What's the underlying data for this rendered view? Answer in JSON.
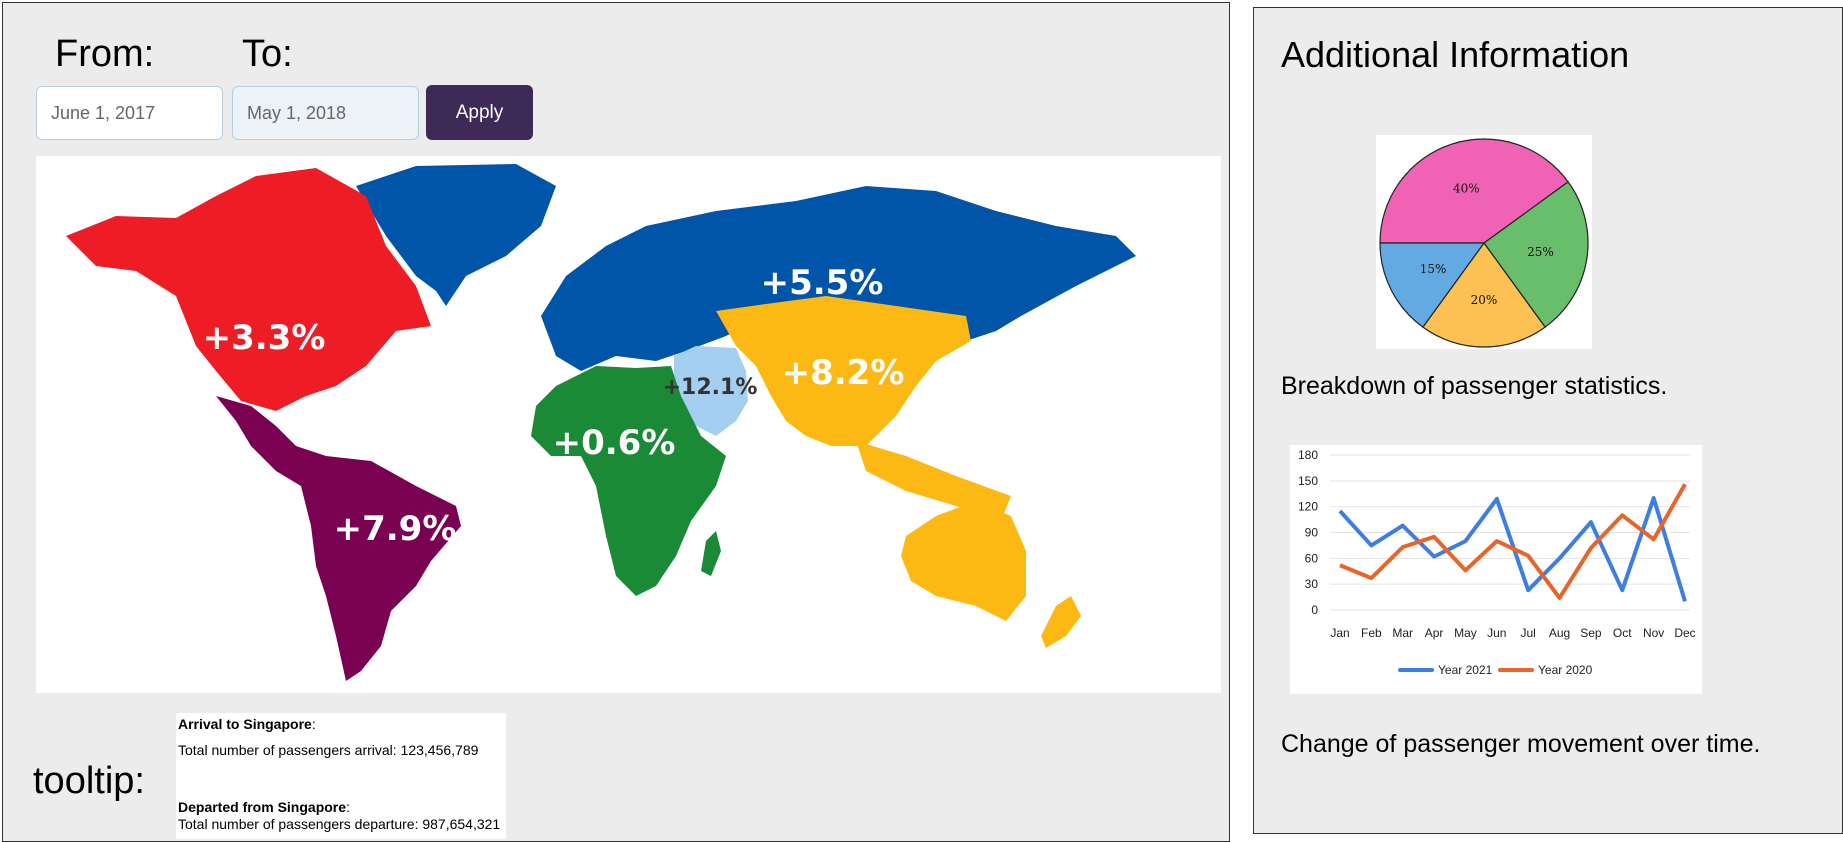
{
  "filters": {
    "from_label": "From:",
    "to_label": "To:",
    "from_value": "June 1, 2017",
    "to_value": "May 1, 2018",
    "apply_label": "Apply"
  },
  "map": {
    "regions": [
      {
        "name": "North America",
        "change": "+3.3%",
        "color": "#ee1c25"
      },
      {
        "name": "Europe",
        "change": "+5.5%",
        "color": "#0055a8"
      },
      {
        "name": "Middle East",
        "change": "+12.1%",
        "color": "#a5cff0"
      },
      {
        "name": "Asia Pacific",
        "change": "+8.2%",
        "color": "#fdb913"
      },
      {
        "name": "Africa",
        "change": "+0.6%",
        "color": "#1a8a37"
      },
      {
        "name": "Latin America",
        "change": "+7.9%",
        "color": "#7a0051"
      }
    ]
  },
  "tooltip": {
    "label": "tooltip:",
    "arrival_title": "Arrival to Singapore",
    "arrival_text": "Total number of passengers arrival: 123,456,789",
    "departure_title": "Departed from Singapore",
    "departure_text": "Total number of passengers departure: 987,654,321",
    "colon": ":"
  },
  "info": {
    "title": "Additional Information",
    "pie_caption": "Breakdown of passenger statistics.",
    "line_caption": "Change of passenger movement over time."
  },
  "chart_data": [
    {
      "type": "pie",
      "labels": [
        "40%",
        "25%",
        "20%",
        "15%"
      ],
      "values": [
        40,
        25,
        20,
        15
      ],
      "colors": [
        "#ef62b4",
        "#69be6b",
        "#fbc152",
        "#63aae2"
      ]
    },
    {
      "type": "line",
      "categories": [
        "Jan",
        "Feb",
        "Mar",
        "Apr",
        "May",
        "Jun",
        "Jul",
        "Aug",
        "Sep",
        "Oct",
        "Nov",
        "Dec"
      ],
      "ylim": [
        0,
        180
      ],
      "yticks": [
        0,
        30,
        60,
        90,
        120,
        150,
        180
      ],
      "series": [
        {
          "name": "Year 2021",
          "color": "#3d7ee0",
          "values": [
            115,
            75,
            98,
            62,
            80,
            129,
            23,
            60,
            102,
            23,
            130,
            10
          ]
        },
        {
          "name": "Year 2020",
          "color": "#e8642a",
          "values": [
            52,
            37,
            73,
            85,
            46,
            80,
            63,
            14,
            72,
            110,
            82,
            146
          ]
        }
      ]
    }
  ]
}
